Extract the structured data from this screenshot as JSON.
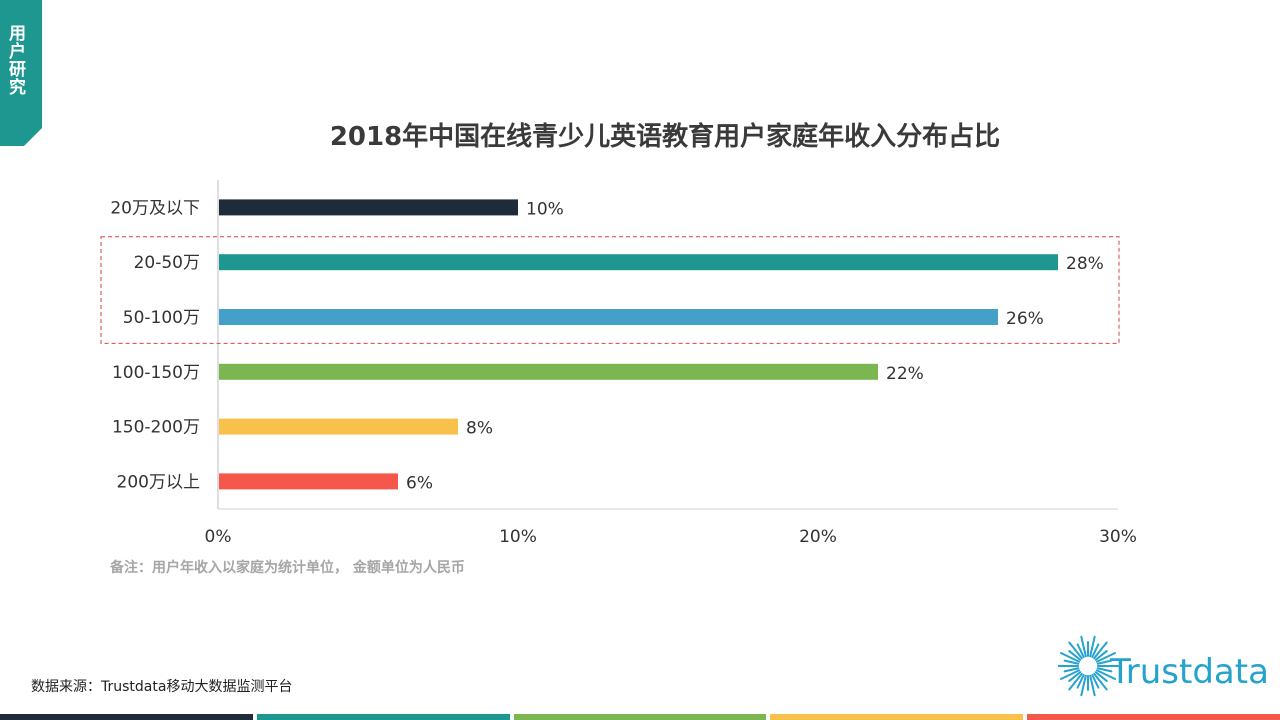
{
  "section_tab": {
    "label": "用户研究",
    "color": "#1e9790"
  },
  "chart_data": {
    "type": "bar",
    "orientation": "horizontal",
    "title": "2018年中国在线青少儿英语教育用户家庭年收入分布占比",
    "categories": [
      "20万及以下",
      "20-50万",
      "50-100万",
      "100-150万",
      "150-200万",
      "200万以上"
    ],
    "values": [
      10,
      28,
      26,
      22,
      8,
      6
    ],
    "value_labels": [
      "10%",
      "28%",
      "26%",
      "22%",
      "8%",
      "6%"
    ],
    "colors": [
      "#1e2b3a",
      "#1e9790",
      "#42a0c9",
      "#7ab651",
      "#f8c14b",
      "#f5574a"
    ],
    "xlim": [
      0,
      30
    ],
    "xticks": [
      "0%",
      "10%",
      "20%",
      "30%"
    ],
    "highlight_categories": [
      "20-50万",
      "50-100万"
    ],
    "highlight_color": "#d9443a",
    "grid": false
  },
  "note": "备注：用户年收入以家庭为统计单位，  金额单位为人民币",
  "source": "数据来源：Trustdata移动大数据监测平台",
  "logo": {
    "text": "Trustdata",
    "icon": "sunburst-logo-icon",
    "color": "#24a3cc"
  },
  "bottom_bar_colors": [
    "#1e2b3a",
    "#1e9790",
    "#7ab651",
    "#f8c14b",
    "#f5574a"
  ]
}
